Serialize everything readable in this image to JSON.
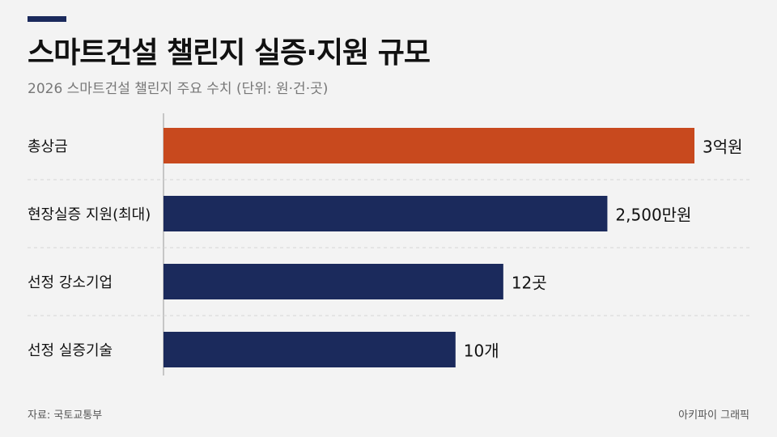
{
  "header": {
    "title": "스마트건설 챌린지 실증·지원 규모",
    "subtitle": "2026 스마트건설 챌린지 주요 수치 (단위: 원·건·곳)"
  },
  "footer": {
    "source": "자료: 국토교통부",
    "credit": "아키파이 그래픽"
  },
  "colors": {
    "highlight": "#c8491e",
    "bar": "#1b2a5c",
    "accent": "#1b2a5c"
  },
  "chart_data": {
    "type": "bar",
    "orientation": "horizontal",
    "categories": [
      "총상금",
      "현장실증 지원(최대)",
      "선정 강소기업",
      "선정 실증기술"
    ],
    "value_labels": [
      "3억원",
      "2,500만원",
      "12곳",
      "10개"
    ],
    "relative_lengths": [
      1.0,
      0.836,
      0.64,
      0.55
    ],
    "highlight_index": 0,
    "title": "스마트건설 챌린지 실증·지원 규모",
    "xlabel": "",
    "ylabel": "",
    "grid": false
  }
}
